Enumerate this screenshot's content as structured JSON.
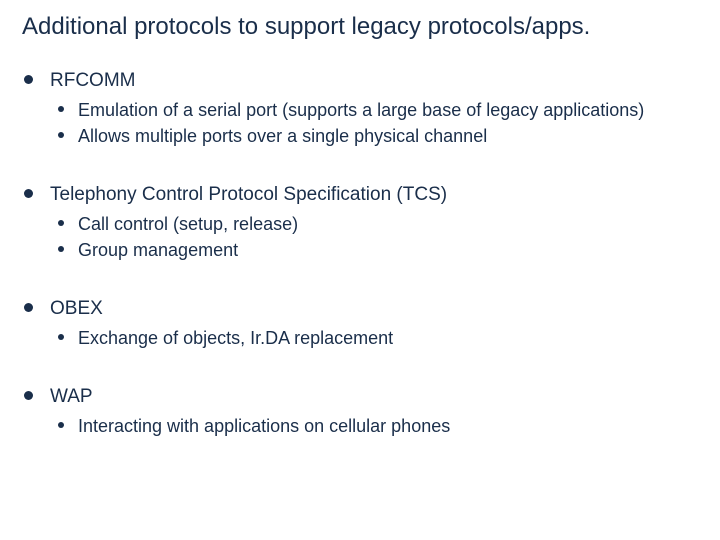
{
  "colors": {
    "text": "#1a2e4a",
    "background": "#ffffff"
  },
  "typography": {
    "title_fontsize": 24,
    "top_fontsize": 19,
    "sub_fontsize": 18,
    "font_family": "Verdana"
  },
  "title": "Additional protocols to support legacy protocols/apps.",
  "items": [
    {
      "label": "RFCOMM",
      "sub": [
        "Emulation of a serial port (supports a large base of legacy applications)",
        "Allows multiple ports over a single physical channel"
      ]
    },
    {
      "label": "Telephony Control Protocol Specification (TCS)",
      "sub": [
        "Call control (setup, release)",
        "Group management"
      ]
    },
    {
      "label": "OBEX",
      "sub": [
        "Exchange of objects, Ir.DA replacement"
      ]
    },
    {
      "label": "WAP",
      "sub": [
        "Interacting with applications on cellular phones"
      ]
    }
  ]
}
